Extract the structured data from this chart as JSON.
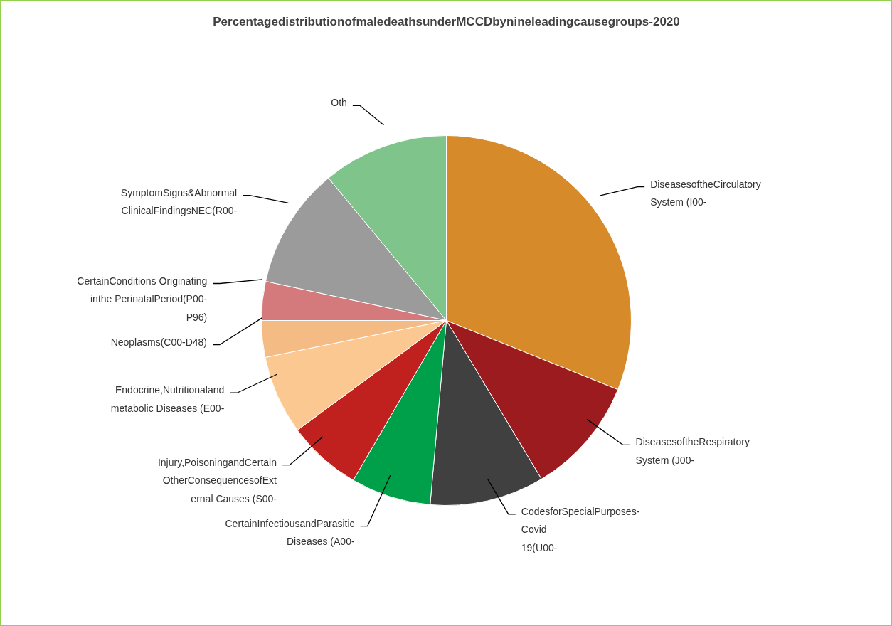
{
  "chart_data": {
    "type": "pie",
    "title": "PercentagedistributionofmaledeathsunderMCCDbynineleadingcausegroups-2020",
    "categories": [
      "DiseasesoftheCirculatory\nSystem (I00-",
      "DiseasesoftheRespiratory\nSystem (J00-",
      "CodesforSpecialPurposes-\nCovid\n19(U00-",
      "CertainInfectiousandParasitic\nDiseases (A00-",
      "Injury,PoisoningandCertain\nOtherConsequencesofExt\nernal Causes (S00-",
      "Endocrine,Nutritionaland\nmetabolic Diseases (E00-",
      "Neoplasms(C00-D48)",
      "CertainConditions Originating\ninthe PerinatalPeriod(P00-\nP96)",
      "SymptomSigns&Abnormal\nClinicalFindingsNEC(R00-",
      "Oth"
    ],
    "values": [
      31.1,
      10.3,
      10,
      7,
      6.5,
      6.9,
      3.2,
      3.4,
      10.6,
      11
    ],
    "colors": [
      "#d68a2a",
      "#9b1b1e",
      "#404040",
      "#00a04a",
      "#c0211f",
      "#fcc892",
      "#f5bb84",
      "#d4797c",
      "#9b9b9b",
      "#7fc48a"
    ]
  }
}
